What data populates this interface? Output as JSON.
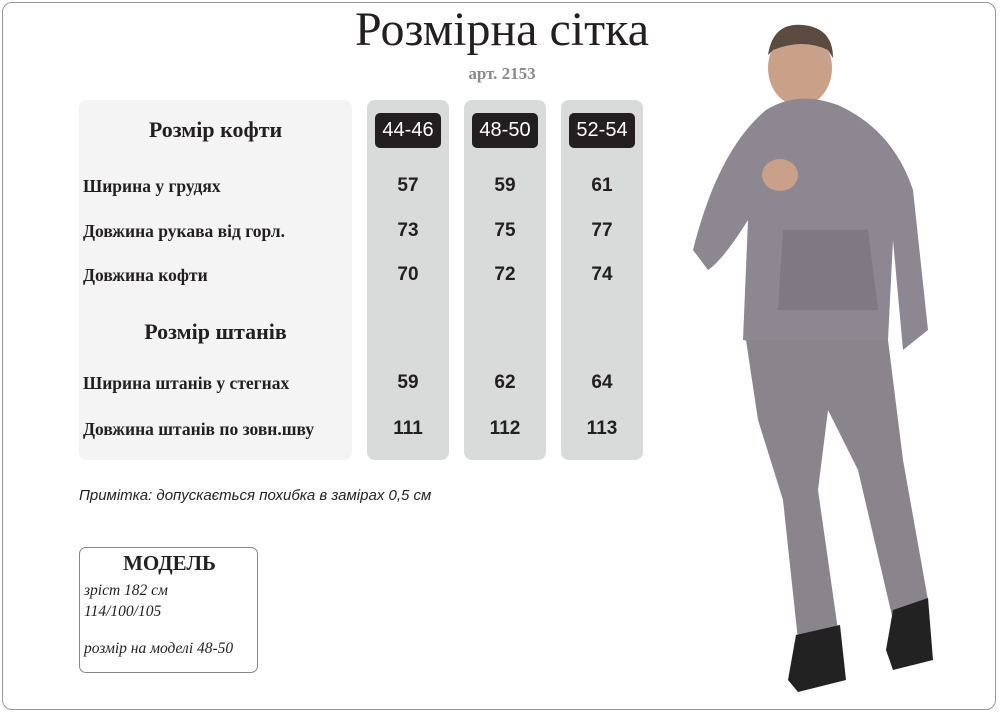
{
  "title": "Розмірна сітка",
  "article": "арт. 2153",
  "sizes": [
    "44-46",
    "48-50",
    "52-54"
  ],
  "top": {
    "header": "Розмір кофти",
    "rows": [
      {
        "label": "Ширина у грудях",
        "values": [
          "57",
          "59",
          "61"
        ]
      },
      {
        "label": "Довжина рукава від горл.",
        "values": [
          "73",
          "75",
          "77"
        ]
      },
      {
        "label": "Довжина кофти",
        "values": [
          "70",
          "72",
          "74"
        ]
      }
    ]
  },
  "pants": {
    "header": "Розмір штанів",
    "rows": [
      {
        "label": "Ширина штанів у стегнах",
        "values": [
          "59",
          "62",
          "64"
        ]
      },
      {
        "label": "Довжина штанів по зовн.шву",
        "values": [
          "111",
          "112",
          "113"
        ]
      }
    ]
  },
  "note": "Примітка: допускається похибка в замірах 0,5 см",
  "model": {
    "title": "МОДЕЛЬ",
    "height": "зріст 182 см",
    "measurements": "114/100/105",
    "size_worn": "розмір на моделі 48-50"
  },
  "colors": {
    "column_bg": "#d9dbdb",
    "badge_bg": "#231f20",
    "panel_bg": "#f4f4f4",
    "article": "#8a8a8a"
  }
}
